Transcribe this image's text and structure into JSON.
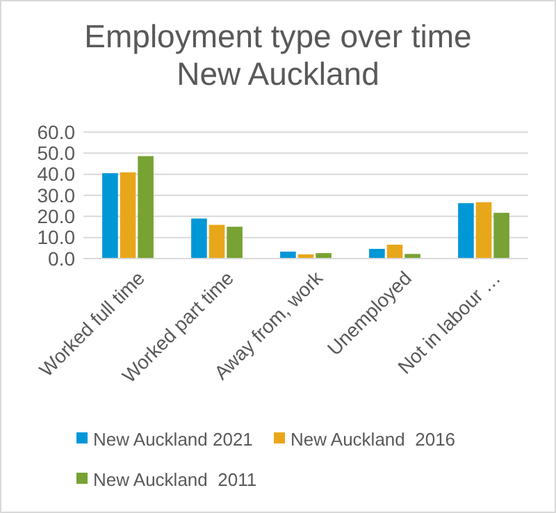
{
  "chart_data": {
    "type": "bar",
    "title": "Employment type over time\nNew Auckland",
    "categories": [
      "Worked full time",
      "Worked part time",
      "Away from, work",
      "Unemployed",
      "Not in labour …"
    ],
    "series": [
      {
        "name": "New Auckland 2021",
        "color": "#0097d7",
        "values": [
          40.5,
          19.0,
          3.3,
          4.6,
          26.3
        ]
      },
      {
        "name": "New Auckland  2016",
        "color": "#e8a71a",
        "values": [
          40.9,
          16.0,
          2.0,
          6.6,
          26.7
        ]
      },
      {
        "name": "New Auckland  2011",
        "color": "#78a233",
        "values": [
          48.6,
          15.1,
          2.6,
          2.2,
          21.7
        ]
      }
    ],
    "ylim": [
      0,
      60
    ],
    "yticks": [
      {
        "value": 0,
        "label": "0.0"
      },
      {
        "value": 10,
        "label": "10.0"
      },
      {
        "value": 20,
        "label": "20.0"
      },
      {
        "value": 30,
        "label": "30.0"
      },
      {
        "value": 40,
        "label": "40.0"
      },
      {
        "value": 50,
        "label": "50.0"
      },
      {
        "value": 60,
        "label": "60.0"
      }
    ],
    "grid": "y",
    "legend": "bottom"
  }
}
